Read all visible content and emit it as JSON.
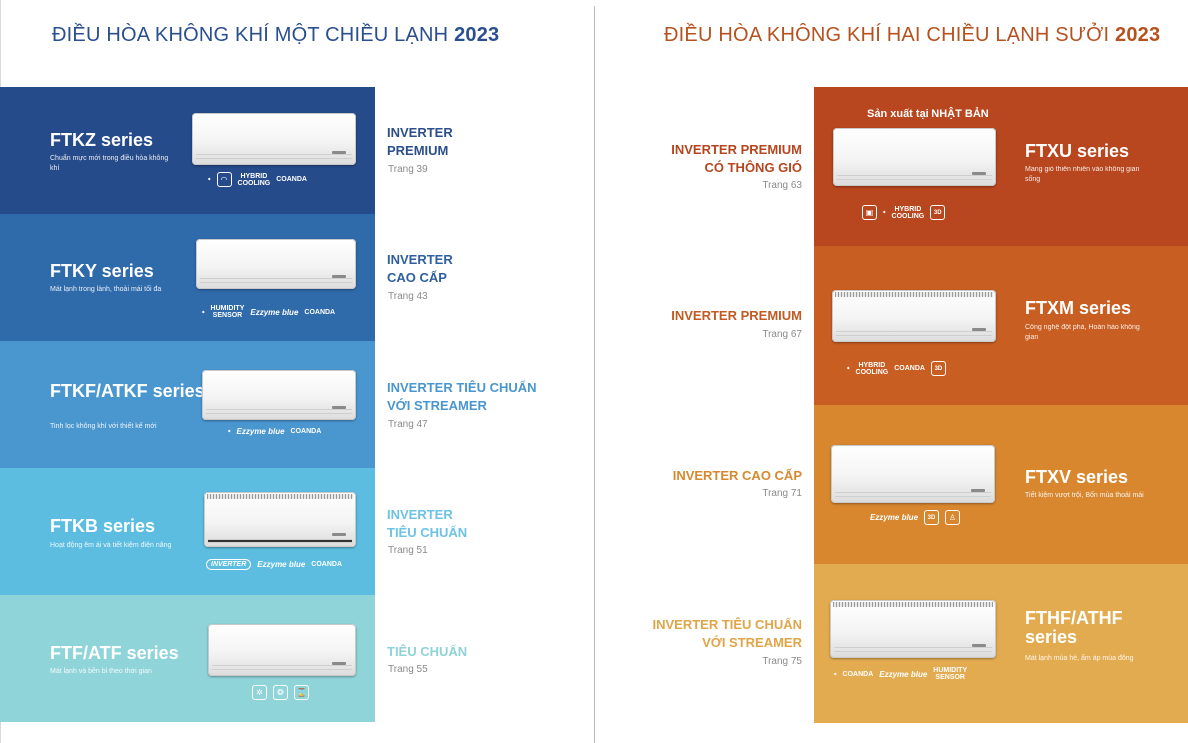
{
  "left": {
    "title_main": "ĐIỀU HÒA KHÔNG KHÍ MỘT CHIỀU LẠNH",
    "title_year": "2023",
    "rows": [
      {
        "name": "FTKZ series",
        "desc": "Chuẩn mực mới trong điều hòa không khí",
        "category_line1": "INVERTER",
        "category_line2": "PREMIUM",
        "page": "Trang 39",
        "color": "#264b8a",
        "cat_color": "#2c4f8c",
        "badges": [
          "daikin-logo",
          "wifi-icon",
          "HYBRID",
          "COOLING",
          "COANDA"
        ]
      },
      {
        "name": "FTKY series",
        "desc": "Mát lạnh trong lành, thoải mái tối đa",
        "category_line1": "INVERTER",
        "category_line2": "CAO CẤP",
        "page": "Trang 43",
        "color": "#2f6aab",
        "cat_color": "#2f5f9e",
        "badges": [
          "daikin-logo",
          "HUMIDITY",
          "SENSOR",
          "Ezzyme blue",
          "COANDA"
        ]
      },
      {
        "name": "FTKF/ATKF series",
        "desc": "Tinh lọc không khí với thiết kế mới",
        "category_line1": "INVERTER TIÊU CHUẨN",
        "category_line2": "VỚI STREAMER",
        "page": "Trang 47",
        "color": "#4a96cf",
        "cat_color": "#4a96cf",
        "badges": [
          "daikin-logo",
          "Ezzyme blue",
          "COANDA"
        ]
      },
      {
        "name": "FTKB series",
        "desc": "Hoạt động êm ái và tiết kiệm điện năng",
        "category_line1": "INVERTER",
        "category_line2": "TIÊU CHUẨN",
        "page": "Trang 51",
        "color": "#5cbde0",
        "cat_color": "#6cc3e2",
        "badges": [
          "INVERTER",
          "Ezzyme blue",
          "COANDA"
        ]
      },
      {
        "name": "FTF/ATF series",
        "desc": "Mát lạnh và bền bỉ theo thời gian",
        "category_line1": "TIÊU CHUẨN",
        "category_line2": "",
        "page": "Trang 55",
        "color": "#8fd4d9",
        "cat_color": "#8fd2d8",
        "badges": [
          "fan-icon",
          "auto-icon",
          "timer-icon"
        ]
      }
    ]
  },
  "right": {
    "title_main": "ĐIỀU HÒA KHÔNG KHÍ HAI CHIỀU LẠNH SƯỞI",
    "title_year": "2023",
    "made_in_prefix": "Sản xuất tại",
    "made_in_country": "NHẬT BẢN",
    "rows": [
      {
        "name": "FTXU series",
        "desc": "Mang gió thiên nhiên vào không gian sống",
        "category_line1": "INVERTER PREMIUM",
        "category_line2": "CÓ THÔNG GIÓ",
        "page": "Trang 63",
        "color": "#b8461e",
        "cat_color": "#b5461f",
        "badges": [
          "vent-icon",
          "daikin-logo",
          "HYBRID",
          "COOLING",
          "3D"
        ]
      },
      {
        "name": "FTXM series",
        "desc": "Công nghệ đột phá, Hoàn hảo không gian",
        "category_line1": "INVERTER PREMIUM",
        "category_line2": "",
        "page": "Trang 67",
        "color": "#c95e22",
        "cat_color": "#c25a22",
        "badges": [
          "daikin-logo",
          "HYBRID",
          "COOLING",
          "COANDA",
          "3D"
        ]
      },
      {
        "name": "FTXV series",
        "desc": "Tiết kiệm vượt trội, Bốn mùa thoải mái",
        "category_line1": "INVERTER CAO CẤP",
        "category_line2": "",
        "page": "Trang 71",
        "color": "#d8872f",
        "cat_color": "#d8892f",
        "badges": [
          "Ezzyme blue",
          "3D",
          "person-icon"
        ]
      },
      {
        "name": "FTHF/ATHF series",
        "desc": "Mát lạnh mùa hè, ấm áp mùa đông",
        "category_line1": "INVERTER TIÊU CHUẨN",
        "category_line2": "VỚI STREAMER",
        "page": "Trang 75",
        "color": "#e3ab50",
        "cat_color": "#e0a549",
        "badges": [
          "daikin-logo",
          "COANDA",
          "Ezzyme blue",
          "HUMIDITY",
          "SENSOR"
        ]
      }
    ]
  }
}
